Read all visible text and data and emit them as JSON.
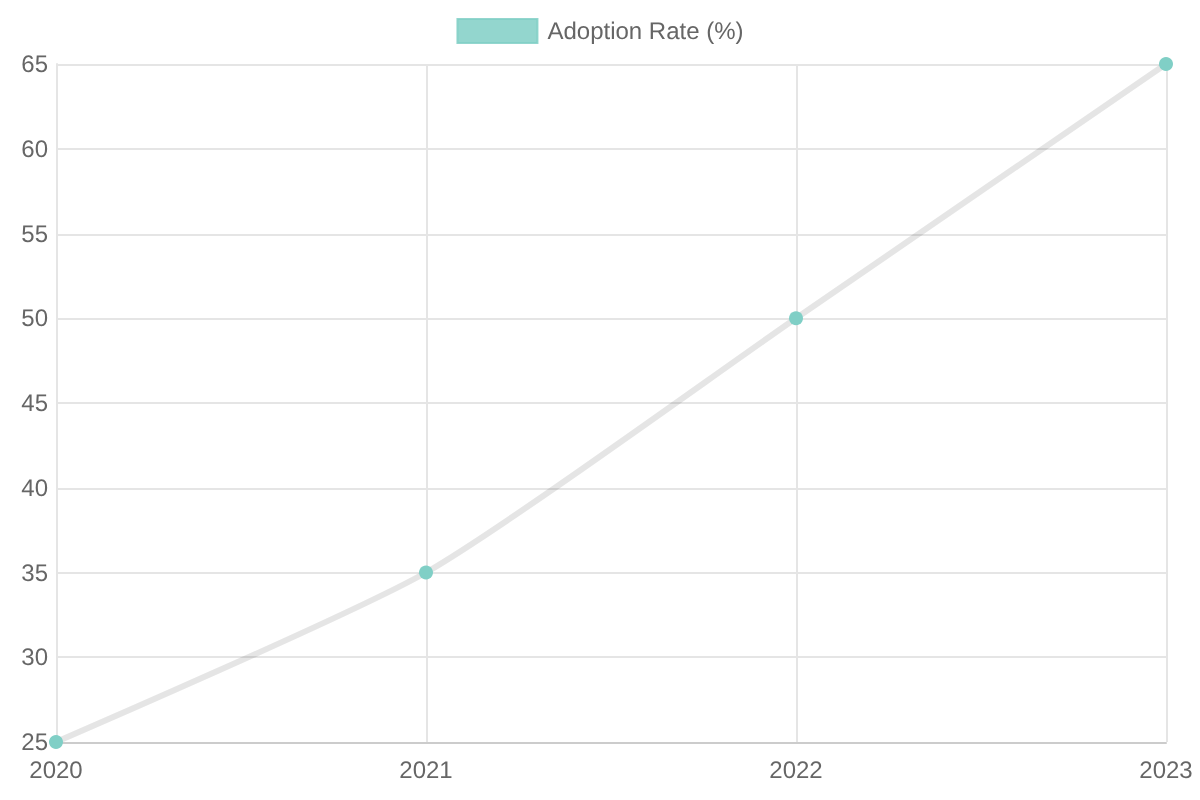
{
  "chart_data": {
    "type": "line",
    "categories": [
      "2020",
      "2021",
      "2022",
      "2023"
    ],
    "series": [
      {
        "name": "Adoption Rate (%)",
        "color": "#80cfc6",
        "values": [
          25,
          35,
          50,
          65
        ]
      }
    ],
    "ylim": [
      25,
      65
    ],
    "yticks": [
      25,
      30,
      35,
      40,
      45,
      50,
      55,
      60,
      65
    ],
    "grid": true,
    "legend": "top",
    "marker": "circle"
  }
}
